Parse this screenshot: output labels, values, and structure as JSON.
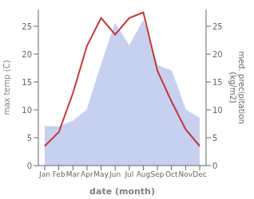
{
  "chart_data": {
    "type": "line",
    "categories": [
      "Jan",
      "Feb",
      "Mar",
      "Apr",
      "May",
      "Jun",
      "Jul",
      "Aug",
      "Sep",
      "Oct",
      "Nov",
      "Dec"
    ],
    "xlabel": "date (month)",
    "ylabel": "max temp (C)",
    "y2label": "med. precipitation\n(kg/m2)",
    "ylim": [
      0,
      28
    ],
    "yticks": [
      0,
      5,
      10,
      15,
      20,
      25
    ],
    "y2lim": [
      0,
      28
    ],
    "y2ticks": [
      0,
      5,
      10,
      15,
      20,
      25
    ],
    "series": [
      {
        "type": "area",
        "axis": "y2",
        "color": "#c8d0f0",
        "values": [
          7.0,
          7.0,
          8.0,
          10.0,
          18.0,
          25.5,
          21.5,
          26.0,
          18.0,
          17.0,
          10.0,
          8.5
        ]
      },
      {
        "type": "line",
        "color": "#c0393b",
        "values": [
          3.5,
          6.0,
          13.0,
          21.5,
          26.5,
          23.5,
          26.5,
          27.5,
          17.0,
          11.5,
          6.5,
          3.5
        ]
      }
    ]
  }
}
